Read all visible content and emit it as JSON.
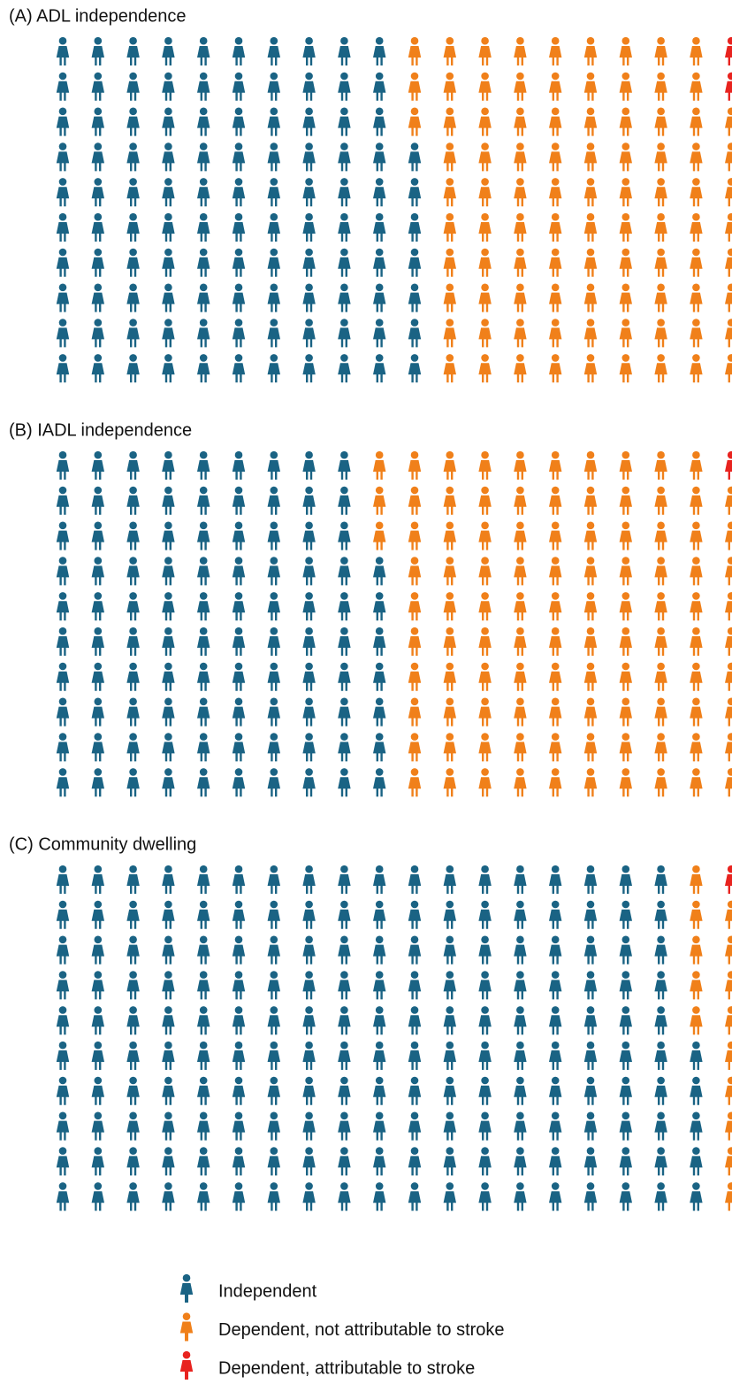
{
  "chart_data": [
    {
      "type": "waffle",
      "title": "(A) ADL independence",
      "rows": 10,
      "values": [
        107,
        91,
        2
      ]
    },
    {
      "type": "waffle",
      "title": "(B) IADL independence",
      "rows": 10,
      "values": [
        97,
        102,
        1
      ]
    },
    {
      "type": "waffle",
      "title": "(C) Community dwelling",
      "rows": 10,
      "values": [
        185,
        14,
        1
      ]
    }
  ],
  "legend": [
    {
      "name": "Independent",
      "color": "#1a6384"
    },
    {
      "name": "Dependent, not attributable to stroke",
      "color": "#f0801a"
    },
    {
      "name": "Dependent, attributable to stroke",
      "color": "#e8231f"
    }
  ]
}
